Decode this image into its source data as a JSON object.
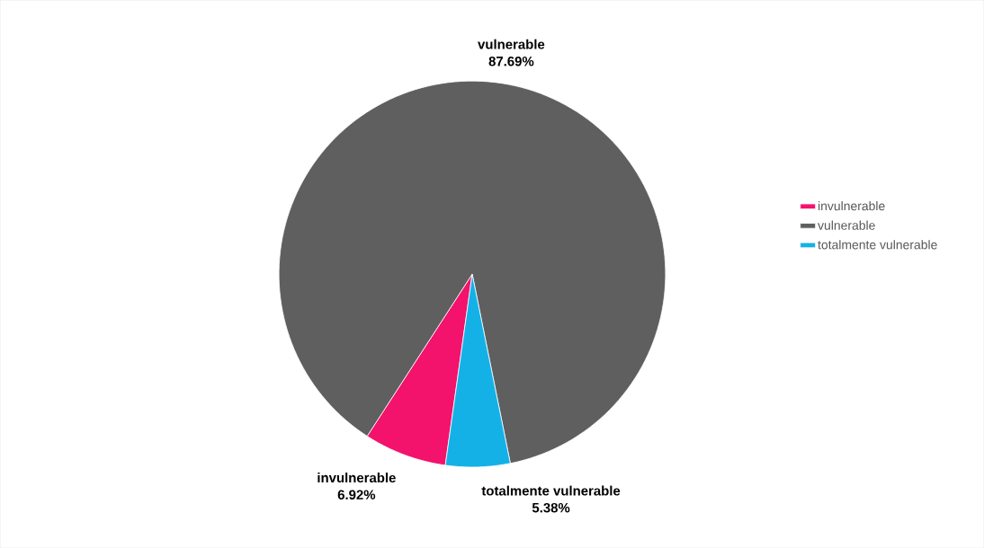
{
  "chart_data": {
    "type": "pie",
    "categories": [
      "invulnerable",
      "vulnerable",
      "totalmente vulnerable"
    ],
    "values": [
      6.92,
      87.69,
      5.38
    ],
    "colors": [
      "#f3126c",
      "#5f5f5f",
      "#14b1e7"
    ],
    "value_labels": [
      "6.92%",
      "87.69%",
      "5.38%"
    ],
    "legend": "right"
  }
}
